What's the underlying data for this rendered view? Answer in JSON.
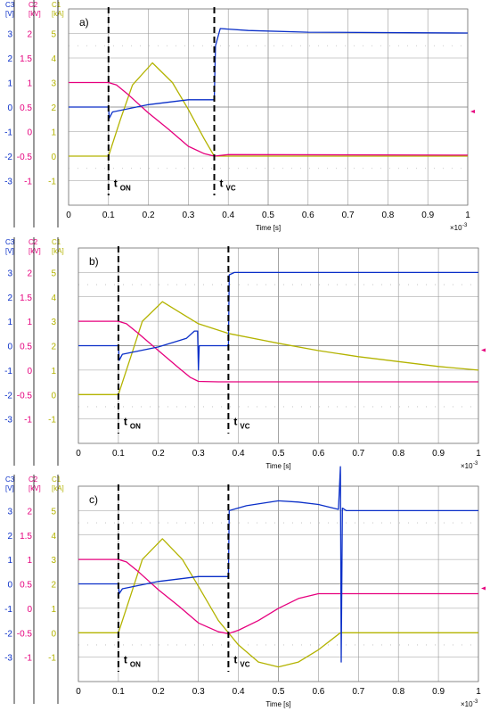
{
  "colors": {
    "c1": "#b3b300",
    "c2": "#e6007e",
    "c3": "#0a2fc8",
    "grid": "#9a9a9a",
    "marker": "#e6007e"
  },
  "shared": {
    "time_label": "Time [s]",
    "time_exp": "×10",
    "time_exp_sup": "-3",
    "t_on": "t",
    "t_on_sub": "ON",
    "t_vc": "t",
    "t_vc_sub": "VC"
  },
  "chart_data": [
    {
      "panel": "a)",
      "type": "line",
      "xlabel": "Time [s]",
      "x_exponent": "×10-3",
      "xlim": [
        0,
        1
      ],
      "x_ticks": [
        "0",
        "0.1",
        "0.2",
        "0.3",
        "0.4",
        "0.5",
        "0.6",
        "0.7",
        "0.8",
        "0.9",
        "1"
      ],
      "axes": [
        {
          "name": "C3",
          "unit": "[V]",
          "ticks": [
            "3",
            "2",
            "1",
            "0",
            "-1",
            "-2",
            "-3"
          ]
        },
        {
          "name": "C2",
          "unit": "[kV]",
          "ticks": [
            "2",
            "1.5",
            "1",
            "0.5",
            "0",
            "-0.5",
            "-1"
          ]
        },
        {
          "name": "C1",
          "unit": "[kA]",
          "ticks": [
            "5",
            "4",
            "3",
            "2",
            "1",
            "0",
            "-1"
          ]
        }
      ],
      "markers": {
        "t_on": 0.1,
        "t_vc": 0.365
      },
      "series": [
        {
          "name": "C1",
          "unit": "kA",
          "points": [
            [
              0,
              0
            ],
            [
              0.1,
              0
            ],
            [
              0.13,
              1.5
            ],
            [
              0.16,
              2.9
            ],
            [
              0.21,
              3.8
            ],
            [
              0.26,
              3.0
            ],
            [
              0.3,
              1.9
            ],
            [
              0.34,
              0.7
            ],
            [
              0.365,
              0
            ],
            [
              0.4,
              0
            ],
            [
              1,
              0
            ]
          ]
        },
        {
          "name": "C2",
          "unit": "kV",
          "points": [
            [
              0,
              1.0
            ],
            [
              0.1,
              1.0
            ],
            [
              0.12,
              0.95
            ],
            [
              0.15,
              0.75
            ],
            [
              0.2,
              0.38
            ],
            [
              0.25,
              0.05
            ],
            [
              0.3,
              -0.3
            ],
            [
              0.34,
              -0.45
            ],
            [
              0.365,
              -0.5
            ],
            [
              0.4,
              -0.47
            ],
            [
              1,
              -0.48
            ]
          ]
        },
        {
          "name": "C3",
          "unit": "V",
          "points": [
            [
              0,
              0
            ],
            [
              0.1,
              0
            ],
            [
              0.102,
              -0.45
            ],
            [
              0.11,
              -0.2
            ],
            [
              0.2,
              0.1
            ],
            [
              0.3,
              0.3
            ],
            [
              0.365,
              0.3
            ],
            [
              0.368,
              2.5
            ],
            [
              0.38,
              3.2
            ],
            [
              0.45,
              3.12
            ],
            [
              0.6,
              3.05
            ],
            [
              1,
              3.02
            ]
          ]
        }
      ]
    },
    {
      "panel": "b)",
      "type": "line",
      "xlabel": "Time [s]",
      "x_exponent": "×10-3",
      "xlim": [
        0,
        1
      ],
      "x_ticks": [
        "0",
        "0.1",
        "0.2",
        "0.3",
        "0.4",
        "0.5",
        "0.6",
        "0.7",
        "0.8",
        "0.9",
        "1"
      ],
      "axes": [
        {
          "name": "C3",
          "unit": "[V]",
          "ticks": [
            "3",
            "2",
            "1",
            "0",
            "-1",
            "-2",
            "-3"
          ]
        },
        {
          "name": "C2",
          "unit": "[kV]",
          "ticks": [
            "2",
            "1.5",
            "1",
            "0.5",
            "0",
            "-0.5",
            "-1"
          ]
        },
        {
          "name": "C1",
          "unit": "[kA]",
          "ticks": [
            "5",
            "4",
            "3",
            "2",
            "1",
            "0",
            "-1"
          ]
        }
      ],
      "markers": {
        "t_on": 0.1,
        "t_vc": 0.375
      },
      "series": [
        {
          "name": "C1",
          "unit": "kA",
          "points": [
            [
              0,
              0
            ],
            [
              0.1,
              0
            ],
            [
              0.13,
              1.5
            ],
            [
              0.16,
              3.0
            ],
            [
              0.21,
              3.8
            ],
            [
              0.26,
              3.3
            ],
            [
              0.3,
              2.9
            ],
            [
              0.375,
              2.5
            ],
            [
              0.5,
              2.1
            ],
            [
              0.6,
              1.8
            ],
            [
              0.7,
              1.55
            ],
            [
              0.8,
              1.35
            ],
            [
              0.9,
              1.15
            ],
            [
              1,
              1.0
            ]
          ]
        },
        {
          "name": "C2",
          "unit": "kV",
          "points": [
            [
              0,
              1.0
            ],
            [
              0.1,
              1.0
            ],
            [
              0.12,
              0.95
            ],
            [
              0.15,
              0.75
            ],
            [
              0.2,
              0.4
            ],
            [
              0.25,
              0.05
            ],
            [
              0.28,
              -0.15
            ],
            [
              0.3,
              -0.23
            ],
            [
              0.35,
              -0.24
            ],
            [
              1,
              -0.24
            ]
          ]
        },
        {
          "name": "C3",
          "unit": "V",
          "points": [
            [
              0,
              0
            ],
            [
              0.1,
              0
            ],
            [
              0.102,
              -0.6
            ],
            [
              0.11,
              -0.35
            ],
            [
              0.2,
              -0.05
            ],
            [
              0.27,
              0.3
            ],
            [
              0.29,
              0.6
            ],
            [
              0.298,
              0.6
            ],
            [
              0.3,
              -1.0
            ],
            [
              0.302,
              0
            ],
            [
              0.375,
              0
            ],
            [
              0.377,
              2.9
            ],
            [
              0.39,
              3.0
            ],
            [
              1,
              3.0
            ]
          ]
        }
      ]
    },
    {
      "panel": "c)",
      "type": "line",
      "xlabel": "Time [s]",
      "x_exponent": "×10-3",
      "xlim": [
        0,
        1
      ],
      "x_ticks": [
        "0",
        "0.1",
        "0.2",
        "0.3",
        "0.4",
        "0.5",
        "0.6",
        "0.7",
        "0.8",
        "0.9",
        "1"
      ],
      "axes": [
        {
          "name": "C3",
          "unit": "[V]",
          "ticks": [
            "3",
            "2",
            "1",
            "0",
            "-1",
            "-2",
            "-3"
          ]
        },
        {
          "name": "C2",
          "unit": "[kV]",
          "ticks": [
            "2",
            "1.5",
            "1",
            "0.5",
            "0",
            "-0.5",
            "-1"
          ]
        },
        {
          "name": "C1",
          "unit": "[kA]",
          "ticks": [
            "5",
            "4",
            "3",
            "2",
            "1",
            "0",
            "-1"
          ]
        }
      ],
      "markers": {
        "t_on": 0.1,
        "t_vc": 0.375
      },
      "series": [
        {
          "name": "C1",
          "unit": "kA",
          "points": [
            [
              0,
              0
            ],
            [
              0.1,
              0
            ],
            [
              0.13,
              1.5
            ],
            [
              0.16,
              3.0
            ],
            [
              0.21,
              3.85
            ],
            [
              0.26,
              3.0
            ],
            [
              0.3,
              1.9
            ],
            [
              0.35,
              0.5
            ],
            [
              0.4,
              -0.5
            ],
            [
              0.45,
              -1.2
            ],
            [
              0.5,
              -1.4
            ],
            [
              0.55,
              -1.2
            ],
            [
              0.6,
              -0.7
            ],
            [
              0.655,
              0
            ],
            [
              0.66,
              0
            ],
            [
              1,
              0
            ]
          ]
        },
        {
          "name": "C2",
          "unit": "kV",
          "points": [
            [
              0,
              1.0
            ],
            [
              0.1,
              1.0
            ],
            [
              0.12,
              0.95
            ],
            [
              0.15,
              0.75
            ],
            [
              0.2,
              0.38
            ],
            [
              0.25,
              0.05
            ],
            [
              0.3,
              -0.3
            ],
            [
              0.35,
              -0.48
            ],
            [
              0.375,
              -0.52
            ],
            [
              0.4,
              -0.45
            ],
            [
              0.45,
              -0.25
            ],
            [
              0.5,
              0.0
            ],
            [
              0.55,
              0.2
            ],
            [
              0.6,
              0.3
            ],
            [
              0.655,
              0.3
            ],
            [
              1,
              0.3
            ]
          ]
        },
        {
          "name": "C3",
          "unit": "V",
          "points": [
            [
              0,
              0
            ],
            [
              0.1,
              0
            ],
            [
              0.102,
              -0.4
            ],
            [
              0.11,
              -0.2
            ],
            [
              0.2,
              0.1
            ],
            [
              0.3,
              0.3
            ],
            [
              0.375,
              0.3
            ],
            [
              0.377,
              3.0
            ],
            [
              0.42,
              3.2
            ],
            [
              0.5,
              3.4
            ],
            [
              0.55,
              3.35
            ],
            [
              0.6,
              3.25
            ],
            [
              0.65,
              3.05
            ],
            [
              0.655,
              4.8
            ],
            [
              0.657,
              -3.2
            ],
            [
              0.66,
              3.1
            ],
            [
              0.67,
              3.0
            ],
            [
              1,
              3.0
            ]
          ]
        }
      ]
    }
  ]
}
